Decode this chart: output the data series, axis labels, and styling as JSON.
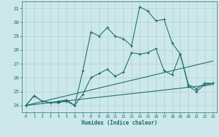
{
  "title": "",
  "xlabel": "Humidex (Indice chaleur)",
  "ylabel": "",
  "bg_color": "#cde8ea",
  "line_color": "#1a6b6b",
  "xlim": [
    -0.5,
    23.5
  ],
  "ylim": [
    23.5,
    31.5
  ],
  "xticks": [
    0,
    1,
    2,
    3,
    4,
    5,
    6,
    7,
    8,
    9,
    10,
    11,
    12,
    13,
    14,
    15,
    16,
    17,
    18,
    19,
    20,
    21,
    22,
    23
  ],
  "yticks": [
    24,
    25,
    26,
    27,
    28,
    29,
    30,
    31
  ],
  "grid_color": "#b0ced0",
  "series0_x": [
    0,
    1,
    2,
    3,
    4,
    5,
    6,
    7,
    8,
    9,
    10,
    11,
    12,
    13,
    14,
    15,
    16,
    17,
    18,
    19,
    20,
    21,
    22,
    23
  ],
  "series0_y": [
    24.0,
    24.7,
    24.3,
    24.2,
    24.2,
    24.3,
    24.0,
    24.8,
    26.0,
    26.3,
    26.6,
    26.1,
    26.4,
    27.8,
    27.7,
    27.8,
    28.1,
    26.5,
    26.2,
    27.7,
    25.4,
    25.0,
    25.5,
    25.6
  ],
  "series1_x": [
    0,
    1,
    2,
    3,
    4,
    5,
    6,
    7,
    8,
    9,
    10,
    11,
    12,
    13,
    14,
    15,
    16,
    17,
    18,
    19,
    20,
    21,
    22,
    23
  ],
  "series1_y": [
    24.0,
    24.7,
    24.3,
    24.2,
    24.3,
    24.4,
    24.0,
    26.5,
    29.3,
    29.0,
    29.6,
    29.0,
    28.8,
    28.3,
    31.1,
    30.8,
    30.1,
    30.2,
    28.5,
    27.7,
    25.5,
    25.2,
    25.6,
    25.6
  ],
  "line2_x": [
    0,
    23
  ],
  "line2_y": [
    24.0,
    25.5
  ],
  "line3_x": [
    0,
    23
  ],
  "line3_y": [
    24.0,
    27.2
  ]
}
